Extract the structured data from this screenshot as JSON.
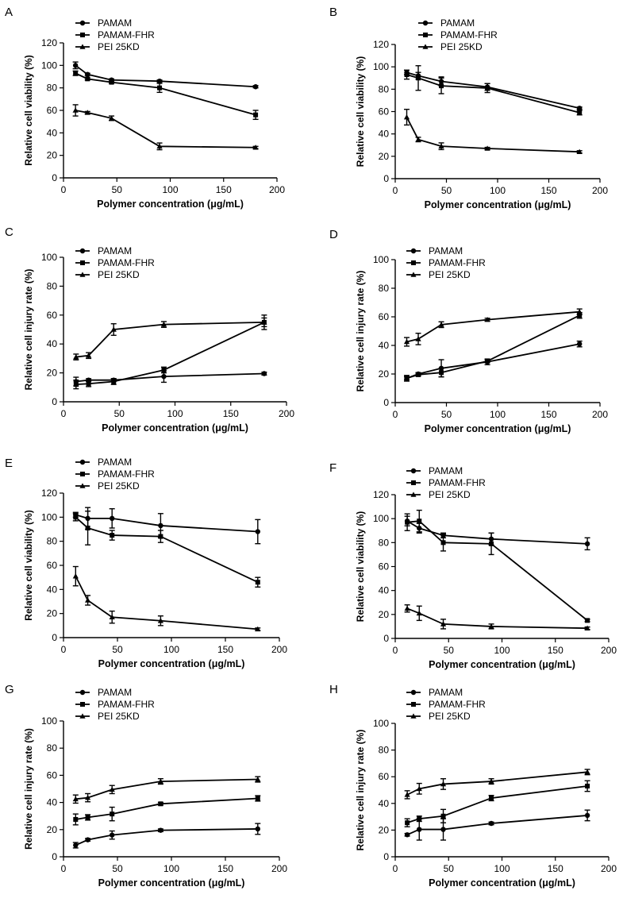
{
  "chart_data": [
    {
      "panel": "A",
      "type": "line",
      "xlabel": "Polymer concentration (μg/mL)",
      "ylabel": "Relative cell viability (%)",
      "xlim": [
        0,
        200
      ],
      "ylim": [
        0,
        120
      ],
      "xticks": [
        0,
        50,
        100,
        150,
        200
      ],
      "yticks": [
        0,
        20,
        40,
        60,
        80,
        100,
        120
      ],
      "x": [
        11.25,
        22.5,
        45,
        90,
        180
      ],
      "series": [
        {
          "name": "PAMAM",
          "marker": "circle",
          "values": [
            100,
            92,
            87,
            86,
            81
          ],
          "errors": [
            3,
            1,
            1,
            1,
            1
          ]
        },
        {
          "name": "PAMAM-FHR",
          "marker": "square",
          "values": [
            93,
            88,
            85,
            80,
            56
          ],
          "errors": [
            2,
            1,
            1,
            4,
            4
          ]
        },
        {
          "name": "PEI 25KD",
          "marker": "triangle",
          "values": [
            60,
            58,
            53,
            28,
            27
          ],
          "errors": [
            5,
            1,
            2,
            3,
            1
          ]
        }
      ]
    },
    {
      "panel": "B",
      "type": "line",
      "xlabel": "Polymer concentration (μg/mL)",
      "ylabel": "Relative cell viability (%)",
      "xlim": [
        0,
        200
      ],
      "ylim": [
        0,
        120
      ],
      "xticks": [
        0,
        50,
        100,
        150,
        200
      ],
      "yticks": [
        0,
        20,
        40,
        60,
        80,
        100,
        120
      ],
      "x": [
        11.25,
        22.5,
        45,
        90,
        180
      ],
      "series": [
        {
          "name": "PAMAM",
          "marker": "circle",
          "values": [
            95,
            92,
            87,
            82,
            63
          ],
          "errors": [
            2,
            3,
            4,
            3,
            1
          ]
        },
        {
          "name": "PAMAM-FHR",
          "marker": "square",
          "values": [
            93,
            90,
            83,
            81,
            59
          ],
          "errors": [
            4,
            11,
            7,
            4,
            2
          ]
        },
        {
          "name": "PEI 25KD",
          "marker": "triangle",
          "values": [
            55,
            35,
            29,
            27,
            24
          ],
          "errors": [
            7,
            2,
            3,
            1,
            1
          ]
        }
      ]
    },
    {
      "panel": "C",
      "type": "line",
      "xlabel": "Polymer concentration (μg/mL)",
      "ylabel": "Relative cell injury rate (%)",
      "xlim": [
        0,
        200
      ],
      "ylim": [
        0,
        100
      ],
      "xticks": [
        0,
        50,
        100,
        150,
        200
      ],
      "yticks": [
        0,
        20,
        40,
        60,
        80,
        100
      ],
      "x": [
        11.25,
        22.5,
        45,
        90,
        180
      ],
      "series": [
        {
          "name": "PAMAM",
          "marker": "circle",
          "values": [
            14,
            15,
            15,
            17.5,
            19.5
          ],
          "errors": [
            3,
            1,
            1,
            4,
            1
          ]
        },
        {
          "name": "PAMAM-FHR",
          "marker": "square",
          "values": [
            12,
            12.5,
            14,
            22,
            55
          ],
          "errors": [
            3,
            2,
            2,
            2,
            5
          ]
        },
        {
          "name": "PEI 25KD",
          "marker": "triangle",
          "values": [
            31,
            32,
            50,
            53.5,
            55
          ],
          "errors": [
            2,
            2,
            4,
            2,
            3
          ]
        }
      ]
    },
    {
      "panel": "D",
      "type": "line",
      "xlabel": "Polymer concentration (μg/mL)",
      "ylabel": "Relative cell injury rate (%)",
      "xlim": [
        0,
        200
      ],
      "ylim": [
        0,
        100
      ],
      "xticks": [
        0,
        50,
        100,
        150,
        200
      ],
      "yticks": [
        0,
        20,
        40,
        60,
        80,
        100
      ],
      "x": [
        11.25,
        22.5,
        45,
        90,
        180
      ],
      "series": [
        {
          "name": "PAMAM",
          "marker": "circle",
          "values": [
            17,
            20,
            24,
            28.5,
            41
          ],
          "errors": [
            2,
            1,
            6,
            2,
            2
          ]
        },
        {
          "name": "PAMAM-FHR",
          "marker": "square",
          "values": [
            17,
            19.5,
            21,
            29,
            61
          ],
          "errors": [
            1,
            1,
            3,
            1,
            2
          ]
        },
        {
          "name": "PEI 25KD",
          "marker": "triangle",
          "values": [
            42.5,
            44.5,
            54.5,
            58,
            63.5
          ],
          "errors": [
            3,
            4,
            2,
            1,
            2
          ]
        }
      ]
    },
    {
      "panel": "E",
      "type": "line",
      "xlabel": "Polymer concentration (μg/mL)",
      "ylabel": "Relative cell viability (%)",
      "xlim": [
        0,
        200
      ],
      "ylim": [
        0,
        120
      ],
      "xticks": [
        0,
        50,
        100,
        150,
        200
      ],
      "yticks": [
        0,
        20,
        40,
        60,
        80,
        100,
        120
      ],
      "x": [
        11.25,
        22.5,
        45,
        90,
        180
      ],
      "series": [
        {
          "name": "PAMAM",
          "marker": "circle",
          "values": [
            102,
            99,
            99,
            93,
            88
          ],
          "errors": [
            2,
            9,
            8,
            10,
            10
          ]
        },
        {
          "name": "PAMAM-FHR",
          "marker": "square",
          "values": [
            100,
            91,
            85,
            84,
            46
          ],
          "errors": [
            3,
            14,
            4,
            5,
            4
          ]
        },
        {
          "name": "PEI 25KD",
          "marker": "triangle",
          "values": [
            51,
            31,
            17,
            14,
            7
          ],
          "errors": [
            8,
            4,
            5,
            4,
            1
          ]
        }
      ]
    },
    {
      "panel": "F",
      "type": "line",
      "xlabel": "Polymer concentration (μg/mL)",
      "ylabel": "Relative cell viability (%)",
      "xlim": [
        0,
        200
      ],
      "ylim": [
        0,
        120
      ],
      "xticks": [
        0,
        50,
        100,
        150,
        200
      ],
      "yticks": [
        0,
        20,
        40,
        60,
        80,
        100,
        120
      ],
      "x": [
        11.25,
        22.5,
        45,
        90,
        180
      ],
      "series": [
        {
          "name": "PAMAM",
          "marker": "circle",
          "values": [
            98,
            92,
            86,
            83,
            79
          ],
          "errors": [
            4,
            4,
            2,
            5,
            5
          ]
        },
        {
          "name": "PAMAM-FHR",
          "marker": "square",
          "values": [
            97,
            98,
            80,
            79,
            15
          ],
          "errors": [
            7,
            9,
            7,
            9,
            1
          ]
        },
        {
          "name": "PEI 25KD",
          "marker": "triangle",
          "values": [
            25,
            21,
            12,
            10,
            8.5
          ],
          "errors": [
            3,
            6,
            4,
            2,
            1
          ]
        }
      ]
    },
    {
      "panel": "G",
      "type": "line",
      "xlabel": "Polymer concentration (μg/mL)",
      "ylabel": "Relative cell injury rate (%)",
      "xlim": [
        0,
        200
      ],
      "ylim": [
        0,
        100
      ],
      "xticks": [
        0,
        50,
        100,
        150,
        200
      ],
      "yticks": [
        0,
        20,
        40,
        60,
        80,
        100
      ],
      "x": [
        11.25,
        22.5,
        45,
        90,
        180
      ],
      "series": [
        {
          "name": "PAMAM",
          "marker": "circle",
          "values": [
            8.5,
            12.5,
            16,
            19.5,
            20.5
          ],
          "errors": [
            2,
            1,
            3,
            1,
            4
          ]
        },
        {
          "name": "PAMAM-FHR",
          "marker": "square",
          "values": [
            27.5,
            29,
            31.5,
            39,
            43
          ],
          "errors": [
            4,
            2,
            5,
            1,
            2
          ]
        },
        {
          "name": "PEI 25KD",
          "marker": "triangle",
          "values": [
            42.5,
            43.5,
            49.5,
            55.5,
            57
          ],
          "errors": [
            3,
            3,
            3,
            2,
            2
          ]
        }
      ]
    },
    {
      "panel": "H",
      "type": "line",
      "xlabel": "Polymer concentration (μg/mL)",
      "ylabel": "Relative cell injury rate (%)",
      "xlim": [
        0,
        200
      ],
      "ylim": [
        0,
        100
      ],
      "xticks": [
        0,
        50,
        100,
        150,
        200
      ],
      "yticks": [
        0,
        20,
        40,
        60,
        80,
        100
      ],
      "x": [
        11.25,
        22.5,
        45,
        90,
        180
      ],
      "series": [
        {
          "name": "PAMAM",
          "marker": "circle",
          "values": [
            16.5,
            20.5,
            20.5,
            25,
            31
          ],
          "errors": [
            1,
            8,
            8,
            1,
            4
          ]
        },
        {
          "name": "PAMAM-FHR",
          "marker": "square",
          "values": [
            25.5,
            28.5,
            30.5,
            44,
            53
          ],
          "errors": [
            3,
            2,
            5,
            2,
            4
          ]
        },
        {
          "name": "PEI 25KD",
          "marker": "triangle",
          "values": [
            46.5,
            51,
            54.5,
            56.5,
            63.5
          ],
          "errors": [
            3,
            4,
            4,
            2,
            2
          ]
        }
      ]
    }
  ]
}
